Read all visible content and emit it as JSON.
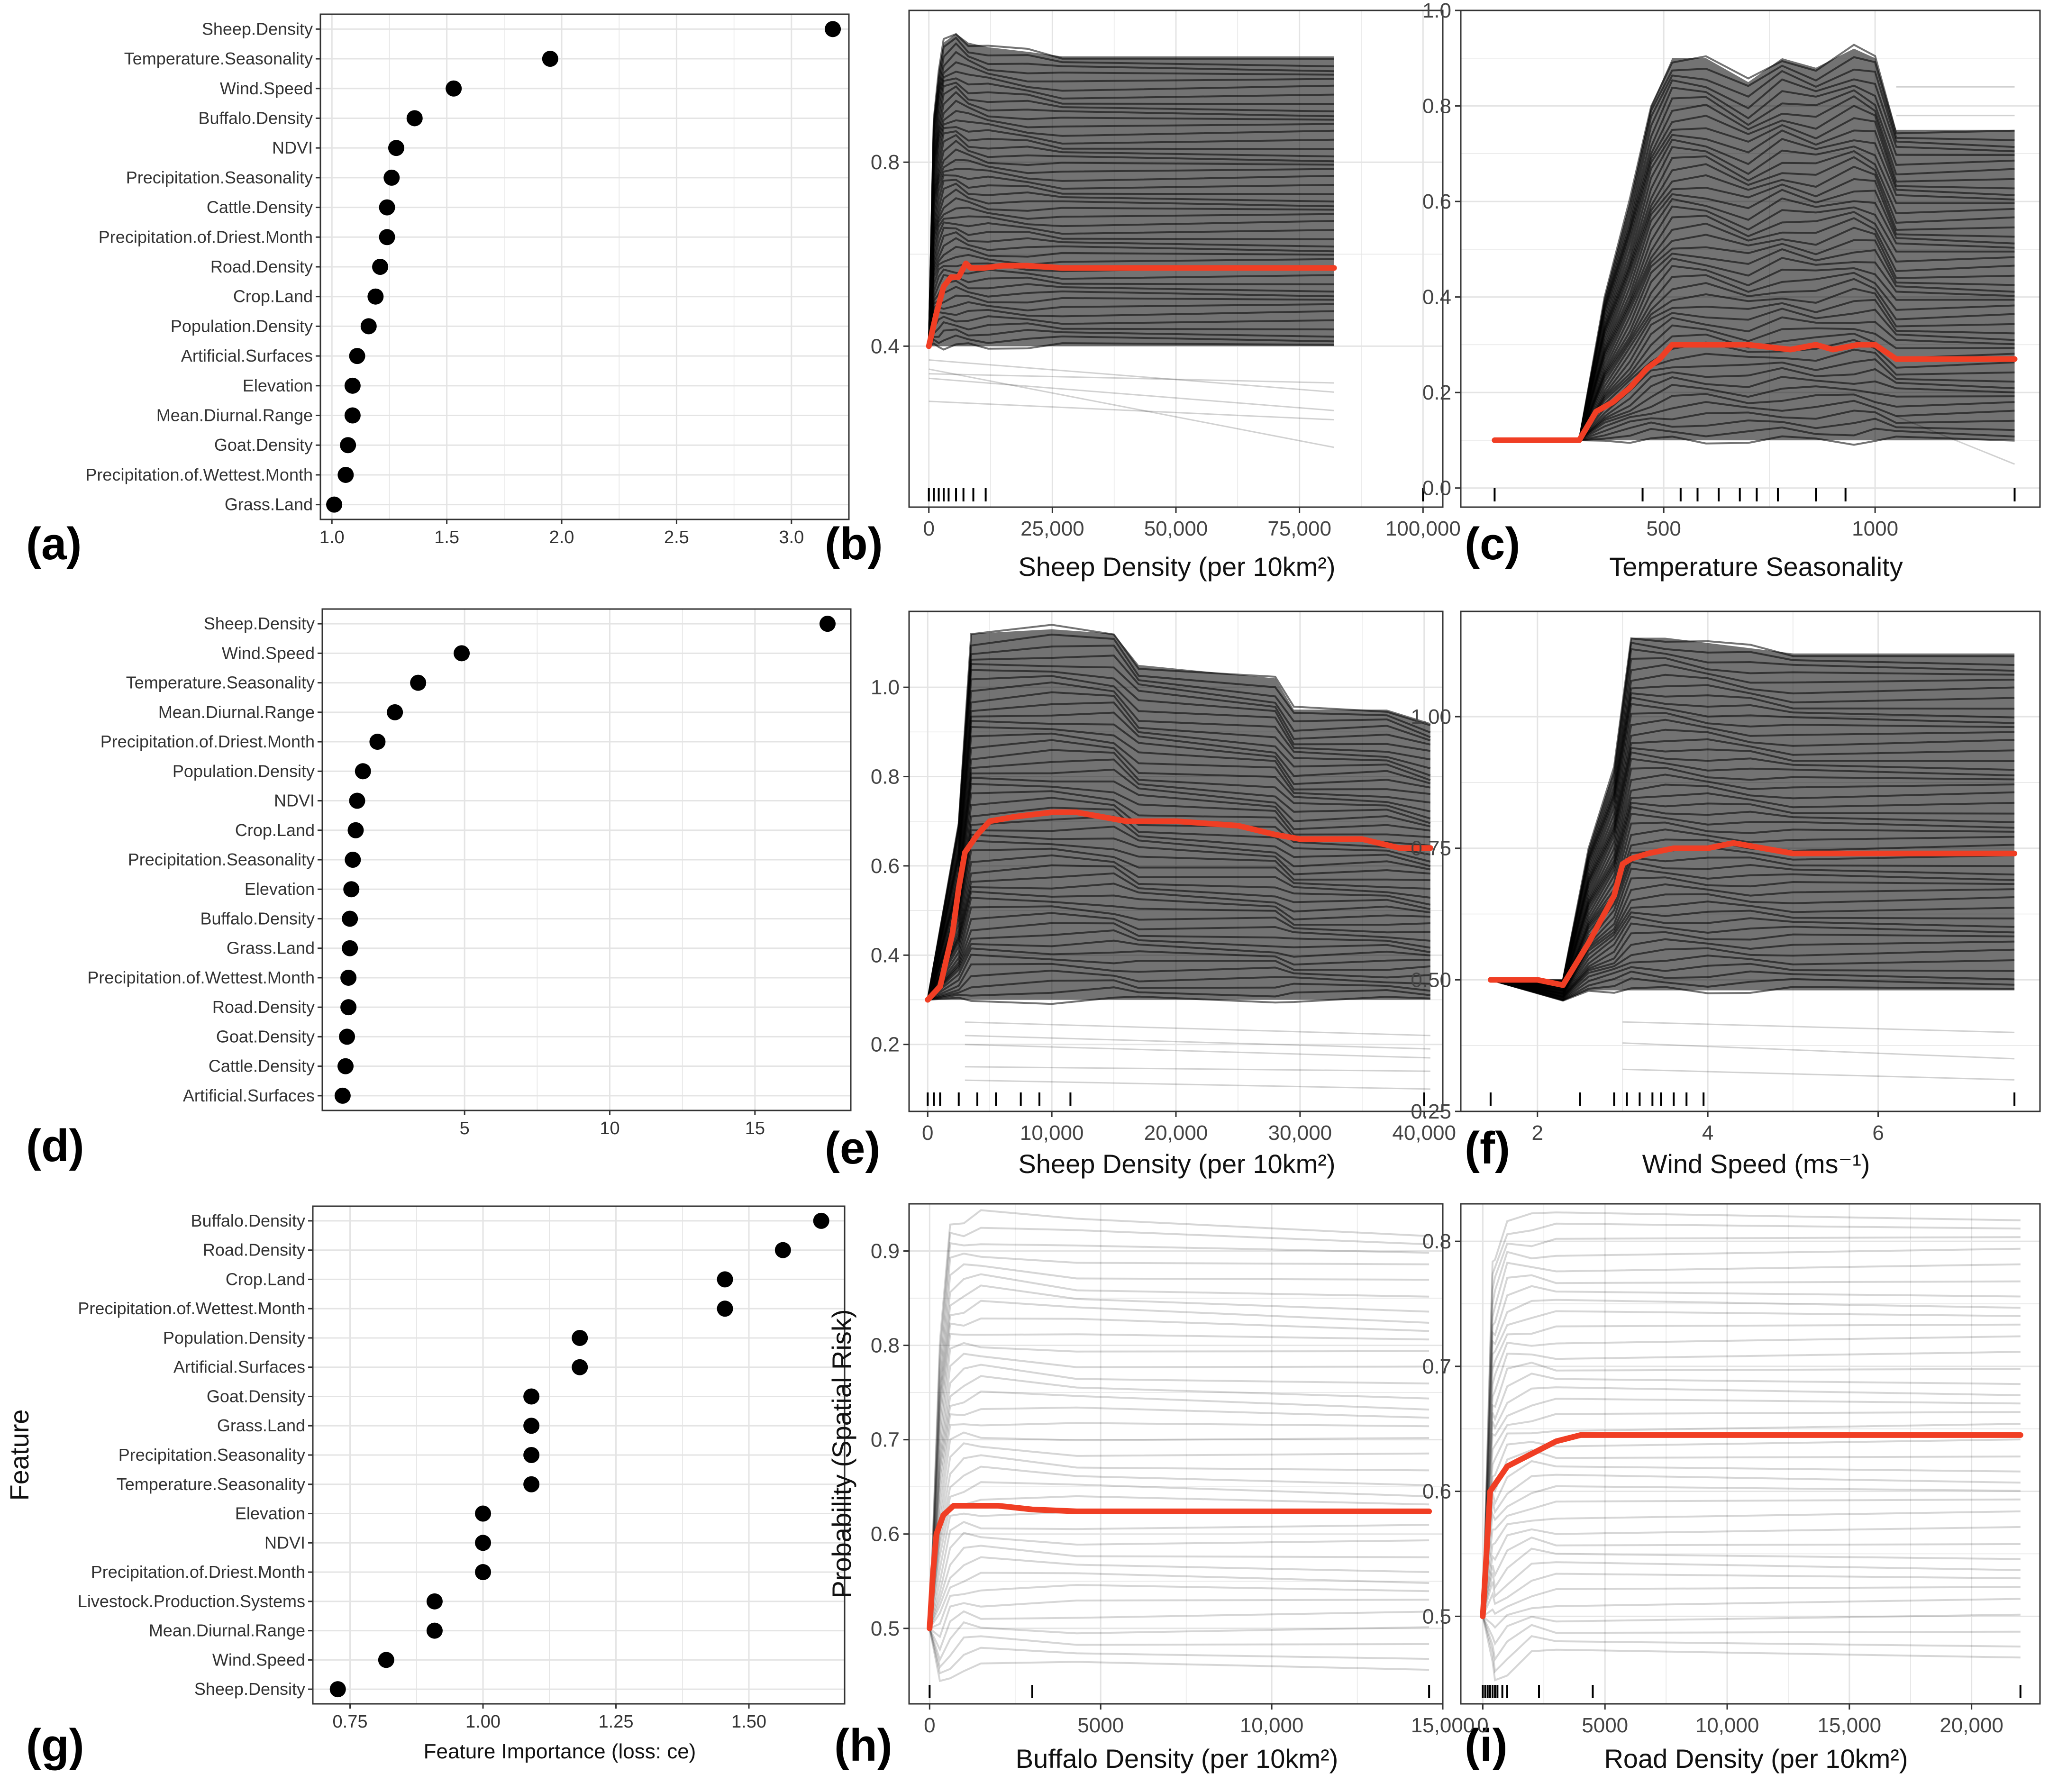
{
  "colors": {
    "pdp_line": "#f03e24",
    "ice_line": "#000000",
    "point": "#000000",
    "grid": "#e4e4e4",
    "panel_border": "#333333"
  },
  "chart_data": [
    {
      "panel": "(a)",
      "type": "scatter",
      "subtype": "feature-importance-dotplot",
      "features": [
        "Sheep.Density",
        "Temperature.Seasonality",
        "Wind.Speed",
        "Buffalo.Density",
        "NDVI",
        "Precipitation.Seasonality",
        "Cattle.Density",
        "Precipitation.of.Driest.Month",
        "Road.Density",
        "Crop.Land",
        "Population.Density",
        "Artificial.Surfaces",
        "Elevation",
        "Mean.Diurnal.Range",
        "Goat.Density",
        "Precipitation.of.Wettest.Month",
        "Grass.Land"
      ],
      "values": [
        3.18,
        1.95,
        1.53,
        1.36,
        1.28,
        1.26,
        1.24,
        1.24,
        1.21,
        1.19,
        1.16,
        1.11,
        1.09,
        1.09,
        1.07,
        1.06,
        1.01
      ],
      "xlim": [
        0.95,
        3.25
      ],
      "xticks": [
        1.0,
        1.5,
        2.0,
        2.5,
        3.0
      ],
      "xtick_labels": [
        "1.0",
        "1.5",
        "2.0",
        "2.5",
        "3.0"
      ],
      "xlabel": "",
      "ylabel": "",
      "grid": true
    },
    {
      "panel": "(b)",
      "type": "line",
      "subtype": "ice-pdp",
      "xlabel": "Sheep Density (per 10km²)",
      "xlim": [
        -4000,
        104000
      ],
      "ylim": [
        0.05,
        1.13
      ],
      "xticks": [
        0,
        25000,
        50000,
        75000,
        100000
      ],
      "xtick_labels": [
        "0",
        "25,000",
        "50,000",
        "75,000",
        "100,000"
      ],
      "yticks": [
        0.4,
        0.8
      ],
      "ytick_labels": [
        "0.4",
        "0.8"
      ],
      "rug": [
        0,
        1000,
        2000,
        3000,
        4000,
        5500,
        7000,
        9000,
        11500,
        100000
      ],
      "pdp": {
        "x": [
          0,
          1500,
          3000,
          4500,
          6000,
          7500,
          8500,
          11000,
          15000,
          20000,
          27000,
          82000
        ],
        "y": [
          0.4,
          0.47,
          0.53,
          0.55,
          0.55,
          0.58,
          0.57,
          0.57,
          0.575,
          0.575,
          0.57,
          0.57
        ]
      },
      "ice_top": [
        [
          0,
          0.4
        ],
        [
          1000,
          0.9
        ],
        [
          2000,
          1.0
        ],
        [
          3000,
          1.06
        ],
        [
          5500,
          1.08
        ],
        [
          8000,
          1.06
        ],
        [
          12000,
          1.05
        ],
        [
          20000,
          1.04
        ],
        [
          27000,
          1.03
        ],
        [
          82000,
          1.03
        ]
      ],
      "ice_bottom": [
        [
          0,
          0.4
        ],
        [
          82000,
          0.4
        ]
      ],
      "ice_stray": [
        [
          0.37,
          0.3
        ],
        [
          0.34,
          0.32
        ],
        [
          0.28,
          0.24
        ],
        [
          0.35,
          0.18
        ],
        [
          0.33,
          0.26
        ]
      ],
      "ice_stray_x": [
        0,
        82000
      ],
      "ice_n": 46
    },
    {
      "panel": "(c)",
      "type": "line",
      "subtype": "ice-pdp",
      "xlabel": "Temperature Seasonality",
      "xlim": [
        20,
        1390
      ],
      "ylim": [
        -0.04,
        1.0
      ],
      "xticks": [
        500,
        1000
      ],
      "xtick_labels": [
        "500",
        "1000"
      ],
      "yticks": [
        0.0,
        0.2,
        0.4,
        0.6,
        0.8,
        1.0
      ],
      "ytick_labels": [
        "0.0",
        "0.2",
        "0.4",
        "0.6",
        "0.8",
        "1.0"
      ],
      "rug": [
        100,
        450,
        540,
        580,
        630,
        680,
        720,
        770,
        860,
        930,
        1330
      ],
      "pdp": {
        "x": [
          100,
          300,
          340,
          380,
          420,
          460,
          490,
          520,
          560,
          600,
          700,
          800,
          860,
          900,
          960,
          1000,
          1050,
          1330
        ],
        "y": [
          0.1,
          0.1,
          0.16,
          0.18,
          0.21,
          0.25,
          0.27,
          0.3,
          0.3,
          0.3,
          0.3,
          0.29,
          0.3,
          0.29,
          0.3,
          0.3,
          0.27,
          0.27
        ]
      },
      "ice_top": [
        [
          100,
          0.1
        ],
        [
          300,
          0.1
        ],
        [
          360,
          0.4
        ],
        [
          420,
          0.6
        ],
        [
          470,
          0.8
        ],
        [
          520,
          0.9
        ],
        [
          600,
          0.9
        ],
        [
          700,
          0.85
        ],
        [
          780,
          0.9
        ],
        [
          860,
          0.88
        ],
        [
          950,
          0.92
        ],
        [
          1000,
          0.9
        ],
        [
          1050,
          0.75
        ],
        [
          1330,
          0.75
        ]
      ],
      "ice_bottom": [
        [
          100,
          0.1
        ],
        [
          1330,
          0.1
        ]
      ],
      "ice_stray": [
        [
          0.84,
          0.84
        ],
        [
          0.78,
          0.78
        ],
        [
          0.15,
          0.05
        ]
      ],
      "ice_stray_x": [
        1050,
        1330
      ],
      "ice_n": 46
    },
    {
      "panel": "(d)",
      "type": "scatter",
      "subtype": "feature-importance-dotplot",
      "features": [
        "Sheep.Density",
        "Wind.Speed",
        "Temperature.Seasonality",
        "Mean.Diurnal.Range",
        "Precipitation.of.Driest.Month",
        "Population.Density",
        "NDVI",
        "Crop.Land",
        "Precipitation.Seasonality",
        "Elevation",
        "Buffalo.Density",
        "Grass.Land",
        "Precipitation.of.Wettest.Month",
        "Road.Density",
        "Goat.Density",
        "Cattle.Density",
        "Artificial.Surfaces"
      ],
      "values": [
        17.5,
        4.9,
        3.4,
        2.6,
        2.0,
        1.5,
        1.3,
        1.25,
        1.15,
        1.1,
        1.05,
        1.05,
        1.0,
        1.0,
        0.95,
        0.9,
        0.8
      ],
      "xlim": [
        0.1,
        18.3
      ],
      "xticks": [
        5,
        10,
        15
      ],
      "xtick_labels": [
        "5",
        "10",
        "15"
      ],
      "xlabel": "",
      "ylabel": "",
      "grid": true
    },
    {
      "panel": "(e)",
      "type": "line",
      "subtype": "ice-pdp",
      "xlabel": "Sheep Density (per 10km²)",
      "xlim": [
        -1500,
        41500
      ],
      "ylim": [
        0.05,
        1.17
      ],
      "xticks": [
        0,
        10000,
        20000,
        30000,
        40000
      ],
      "xtick_labels": [
        "0",
        "10,000",
        "20,000",
        "30,000",
        "40,000"
      ],
      "yticks": [
        0.2,
        0.4,
        0.6,
        0.8,
        1.0
      ],
      "ytick_labels": [
        "0.2",
        "0.4",
        "0.6",
        "0.8",
        "1.0"
      ],
      "rug": [
        0,
        500,
        1000,
        2500,
        4000,
        5500,
        7500,
        9000,
        11500,
        40000
      ],
      "pdp": {
        "x": [
          0,
          1000,
          2000,
          2500,
          3000,
          4000,
          5000,
          7000,
          10000,
          12000,
          16000,
          20000,
          25000,
          28000,
          30000,
          35000,
          38000,
          40500
        ],
        "y": [
          0.3,
          0.33,
          0.45,
          0.55,
          0.63,
          0.67,
          0.7,
          0.71,
          0.72,
          0.72,
          0.7,
          0.7,
          0.69,
          0.67,
          0.66,
          0.66,
          0.64,
          0.64
        ]
      },
      "ice_top": [
        [
          0,
          0.3
        ],
        [
          2500,
          0.7
        ],
        [
          3500,
          1.12
        ],
        [
          10000,
          1.13
        ],
        [
          15000,
          1.12
        ],
        [
          17000,
          1.05
        ],
        [
          28000,
          1.02
        ],
        [
          29500,
          0.95
        ],
        [
          37000,
          0.95
        ],
        [
          40500,
          0.92
        ]
      ],
      "ice_bottom": [
        [
          0,
          0.3
        ],
        [
          40500,
          0.3
        ]
      ],
      "ice_stray": [
        [
          0.25,
          0.22
        ],
        [
          0.2,
          0.17
        ],
        [
          0.15,
          0.14
        ],
        [
          0.22,
          0.19
        ],
        [
          0.12,
          0.1
        ]
      ],
      "ice_stray_x": [
        3000,
        40500
      ],
      "ice_n": 46
    },
    {
      "panel": "(f)",
      "type": "line",
      "subtype": "ice-pdp",
      "xlabel": "Wind Speed (ms⁻¹)",
      "xlim": [
        1.1,
        7.9
      ],
      "ylim": [
        0.25,
        1.2
      ],
      "xticks": [
        2,
        4,
        6
      ],
      "xtick_labels": [
        "2",
        "4",
        "6"
      ],
      "yticks": [
        0.25,
        0.5,
        0.75,
        1.0
      ],
      "ytick_labels": [
        "0.25",
        "0.50",
        "0.75",
        "1.00"
      ],
      "rug": [
        1.45,
        2.5,
        2.9,
        3.05,
        3.2,
        3.35,
        3.45,
        3.6,
        3.75,
        3.95,
        7.6
      ],
      "pdp": {
        "x": [
          1.45,
          2.0,
          2.3,
          2.6,
          2.7,
          2.9,
          3.0,
          3.1,
          3.3,
          3.6,
          3.8,
          4.0,
          4.3,
          5.0,
          7.6
        ],
        "y": [
          0.5,
          0.5,
          0.49,
          0.57,
          0.6,
          0.66,
          0.72,
          0.73,
          0.74,
          0.75,
          0.75,
          0.75,
          0.76,
          0.74,
          0.74
        ]
      },
      "ice_top": [
        [
          1.45,
          0.5
        ],
        [
          2.3,
          0.5
        ],
        [
          2.6,
          0.75
        ],
        [
          2.9,
          0.9
        ],
        [
          3.1,
          1.15
        ],
        [
          3.5,
          1.15
        ],
        [
          4.0,
          1.14
        ],
        [
          4.5,
          1.13
        ],
        [
          5.0,
          1.12
        ],
        [
          7.6,
          1.12
        ]
      ],
      "ice_bottom": [
        [
          1.45,
          0.5
        ],
        [
          2.3,
          0.46
        ],
        [
          2.6,
          0.48
        ],
        [
          7.6,
          0.48
        ]
      ],
      "ice_stray": [
        [
          0.38,
          0.35
        ],
        [
          0.33,
          0.31
        ],
        [
          0.42,
          0.4
        ]
      ],
      "ice_stray_x": [
        3.0,
        7.6
      ],
      "ice_n": 46
    },
    {
      "panel": "(g)",
      "type": "scatter",
      "subtype": "feature-importance-dotplot",
      "features": [
        "Buffalo.Density",
        "Road.Density",
        "Crop.Land",
        "Precipitation.of.Wettest.Month",
        "Population.Density",
        "Artificial.Surfaces",
        "Goat.Density",
        "Grass.Land",
        "Precipitation.Seasonality",
        "Temperature.Seasonality",
        "Elevation",
        "NDVI",
        "Precipitation.of.Driest.Month",
        "Livestock.Production.Systems",
        "Mean.Diurnal.Range",
        "Wind.Speed",
        "Sheep.Density"
      ],
      "values": [
        1.636,
        1.564,
        1.455,
        1.455,
        1.182,
        1.182,
        1.091,
        1.091,
        1.091,
        1.091,
        1.0,
        1.0,
        1.0,
        0.909,
        0.909,
        0.818,
        0.727
      ],
      "xlim": [
        0.68,
        1.68
      ],
      "xticks": [
        0.75,
        1.0,
        1.25,
        1.5
      ],
      "xtick_labels": [
        "0.75",
        "1.00",
        "1.25",
        "1.50"
      ],
      "xlabel": "Feature Importance (loss: ce)",
      "ylabel": "Feature",
      "grid": true
    },
    {
      "panel": "(h)",
      "type": "line",
      "subtype": "ice-pdp",
      "xlabel": "Buffalo Density (per 10km²)",
      "ylabel": "Probability (Spatial Risk)",
      "xlim": [
        -600,
        15000
      ],
      "ylim": [
        0.42,
        0.95
      ],
      "xticks": [
        0,
        5000,
        10000,
        15000
      ],
      "xtick_labels": [
        "0",
        "5000",
        "10,000",
        "15,000"
      ],
      "yticks": [
        0.5,
        0.6,
        0.7,
        0.8,
        0.9
      ],
      "ytick_labels": [
        "0.5",
        "0.6",
        "0.7",
        "0.8",
        "0.9"
      ],
      "rug": [
        0,
        3000,
        14600
      ],
      "pdp": {
        "x": [
          0,
          100,
          200,
          400,
          700,
          1000,
          1500,
          2000,
          3000,
          4300,
          14600
        ],
        "y": [
          0.5,
          0.56,
          0.6,
          0.62,
          0.63,
          0.63,
          0.63,
          0.63,
          0.626,
          0.624,
          0.624
        ]
      },
      "ice_top": [
        [
          0,
          0.5
        ],
        [
          300,
          0.8
        ],
        [
          600,
          0.93
        ],
        [
          1500,
          0.94
        ],
        [
          4300,
          0.93
        ],
        [
          14600,
          0.92
        ]
      ],
      "ice_bottom": [
        [
          0,
          0.5
        ],
        [
          300,
          0.44
        ],
        [
          1000,
          0.46
        ],
        [
          14600,
          0.46
        ]
      ],
      "ice_stray": [],
      "ice_stray_x": [
        0,
        14600
      ],
      "ice_n": 36,
      "ice_opacity": 0.16
    },
    {
      "panel": "(i)",
      "type": "line",
      "subtype": "ice-pdp",
      "xlabel": "Road Density (per 10km²)",
      "xlim": [
        -900,
        22800
      ],
      "ylim": [
        0.43,
        0.83
      ],
      "xticks": [
        0,
        5000,
        10000,
        15000,
        20000
      ],
      "xtick_labels": [
        "0",
        "5000",
        "10,000",
        "15,000",
        "20,000"
      ],
      "yticks": [
        0.5,
        0.6,
        0.7,
        0.8
      ],
      "ytick_labels": [
        "0.5",
        "0.6",
        "0.7",
        "0.8"
      ],
      "rug": [
        0,
        100,
        200,
        300,
        400,
        500,
        600,
        800,
        1000,
        2300,
        4500,
        22000
      ],
      "pdp": {
        "x": [
          0,
          300,
          1000,
          1500,
          2000,
          2500,
          3000,
          4000,
          6000,
          10000,
          22000
        ],
        "y": [
          0.5,
          0.6,
          0.62,
          0.625,
          0.63,
          0.635,
          0.64,
          0.645,
          0.645,
          0.645,
          0.645
        ]
      },
      "ice_top": [
        [
          0,
          0.5
        ],
        [
          400,
          0.78
        ],
        [
          1000,
          0.82
        ],
        [
          3000,
          0.82
        ],
        [
          22000,
          0.82
        ]
      ],
      "ice_bottom": [
        [
          0,
          0.5
        ],
        [
          500,
          0.45
        ],
        [
          2000,
          0.47
        ],
        [
          22000,
          0.47
        ]
      ],
      "ice_stray": [],
      "ice_stray_x": [
        0,
        22000
      ],
      "ice_n": 36,
      "ice_opacity": 0.16
    }
  ]
}
